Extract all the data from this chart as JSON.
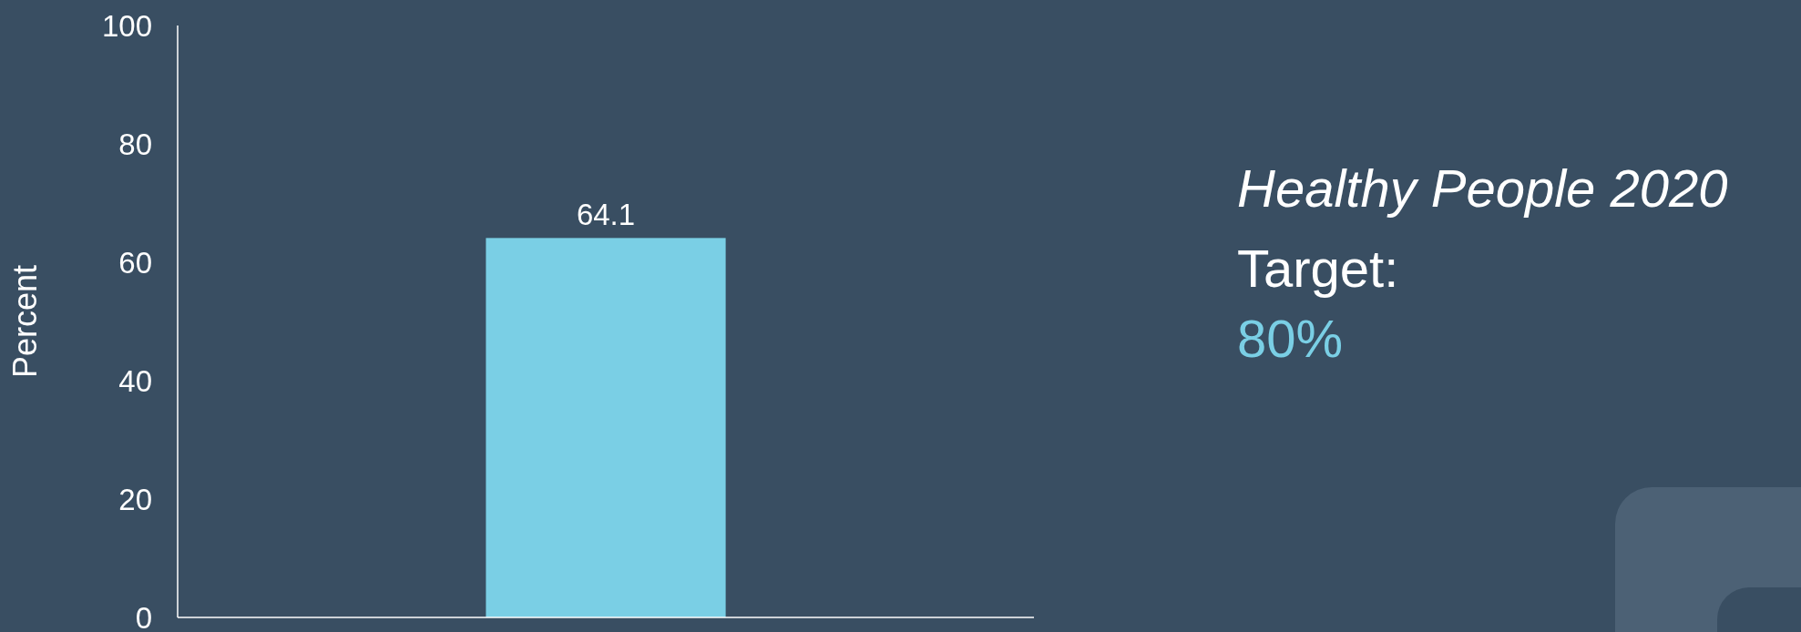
{
  "chart_data": {
    "type": "bar",
    "ylabel": "Percent",
    "categories": [
      null
    ],
    "values": [
      64.1
    ],
    "color": "#7acfe5",
    "ylim": [
      0,
      100
    ],
    "yticks": [
      0,
      20,
      40,
      60,
      80,
      100
    ],
    "data_labels": true,
    "grid": false,
    "annotations": [
      "Healthy People 2020",
      "Target:",
      "80%"
    ]
  }
}
